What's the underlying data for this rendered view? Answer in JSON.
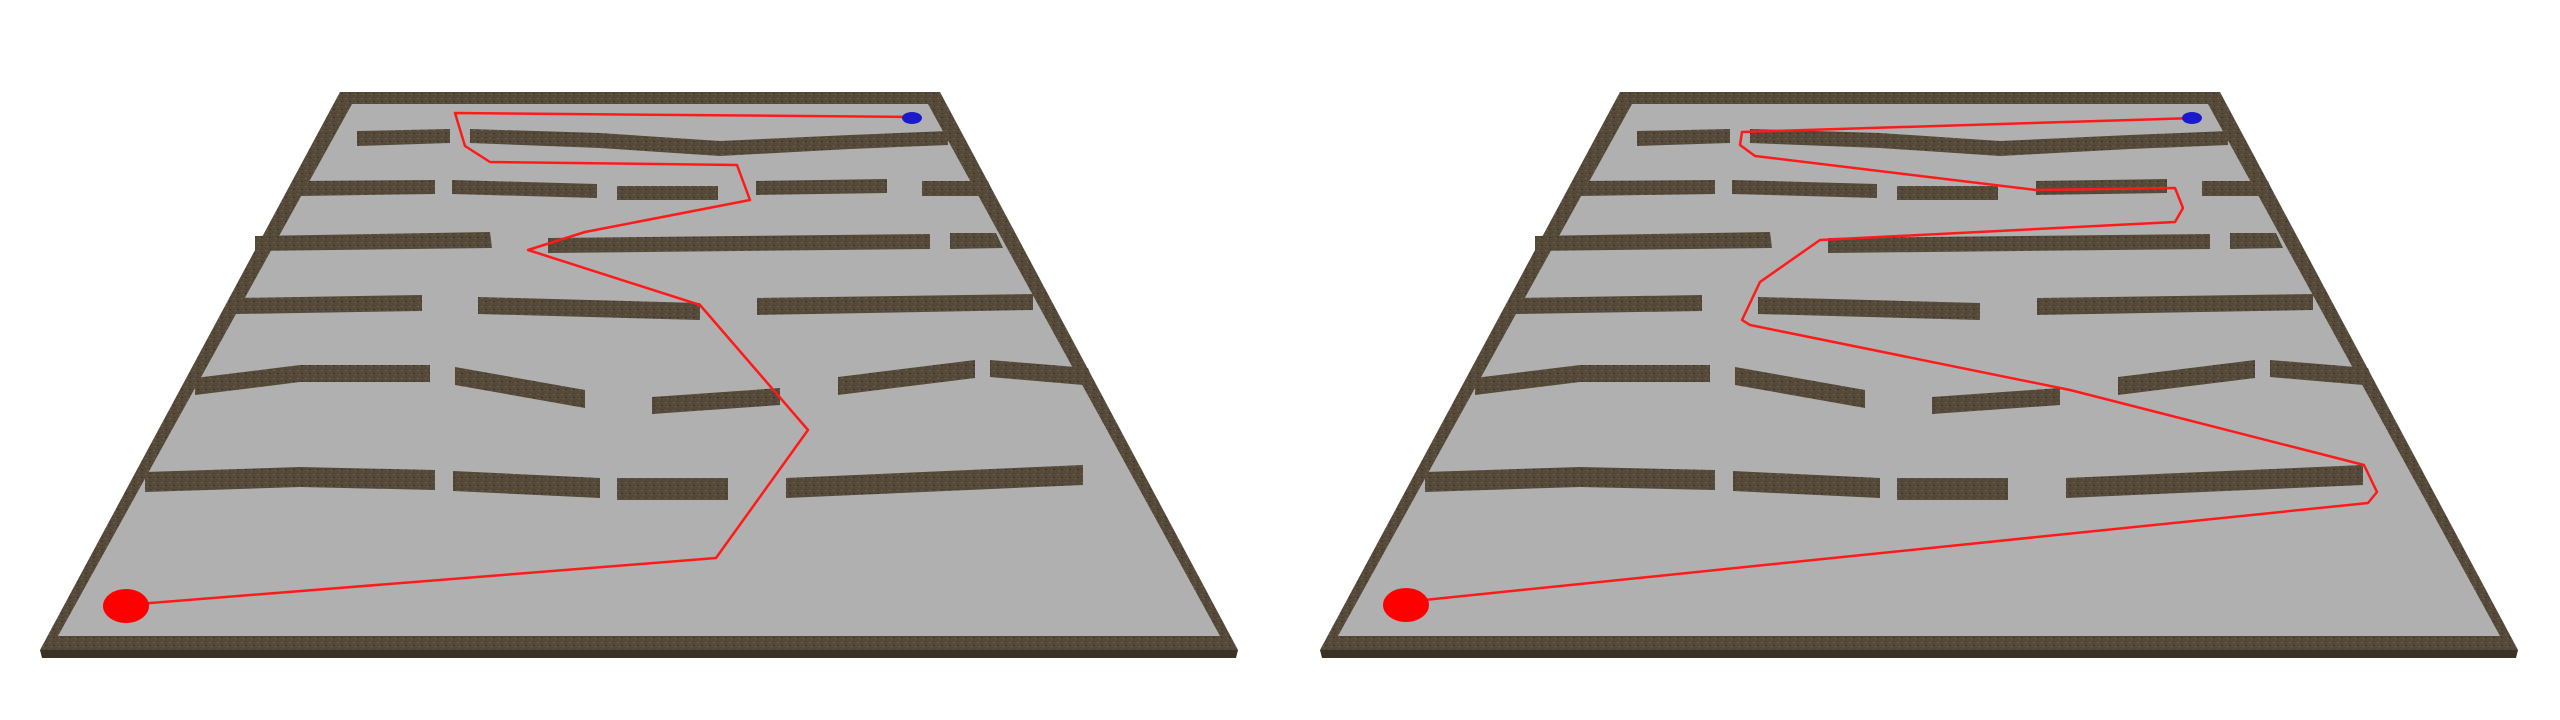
{
  "colors": {
    "background": "#ffffff",
    "floor": "#b0b0b0",
    "border": "#4e4434",
    "wall_top": "#5b5140",
    "wall_side": "#3a3226",
    "path": "#ff1a1a",
    "start_marker": "#ff0000",
    "goal_marker": "#1a1acc"
  },
  "panels": [
    {
      "name": "maze-panel-left",
      "path_variant": "left-route"
    },
    {
      "name": "maze-panel-right",
      "path_variant": "right-route"
    }
  ]
}
